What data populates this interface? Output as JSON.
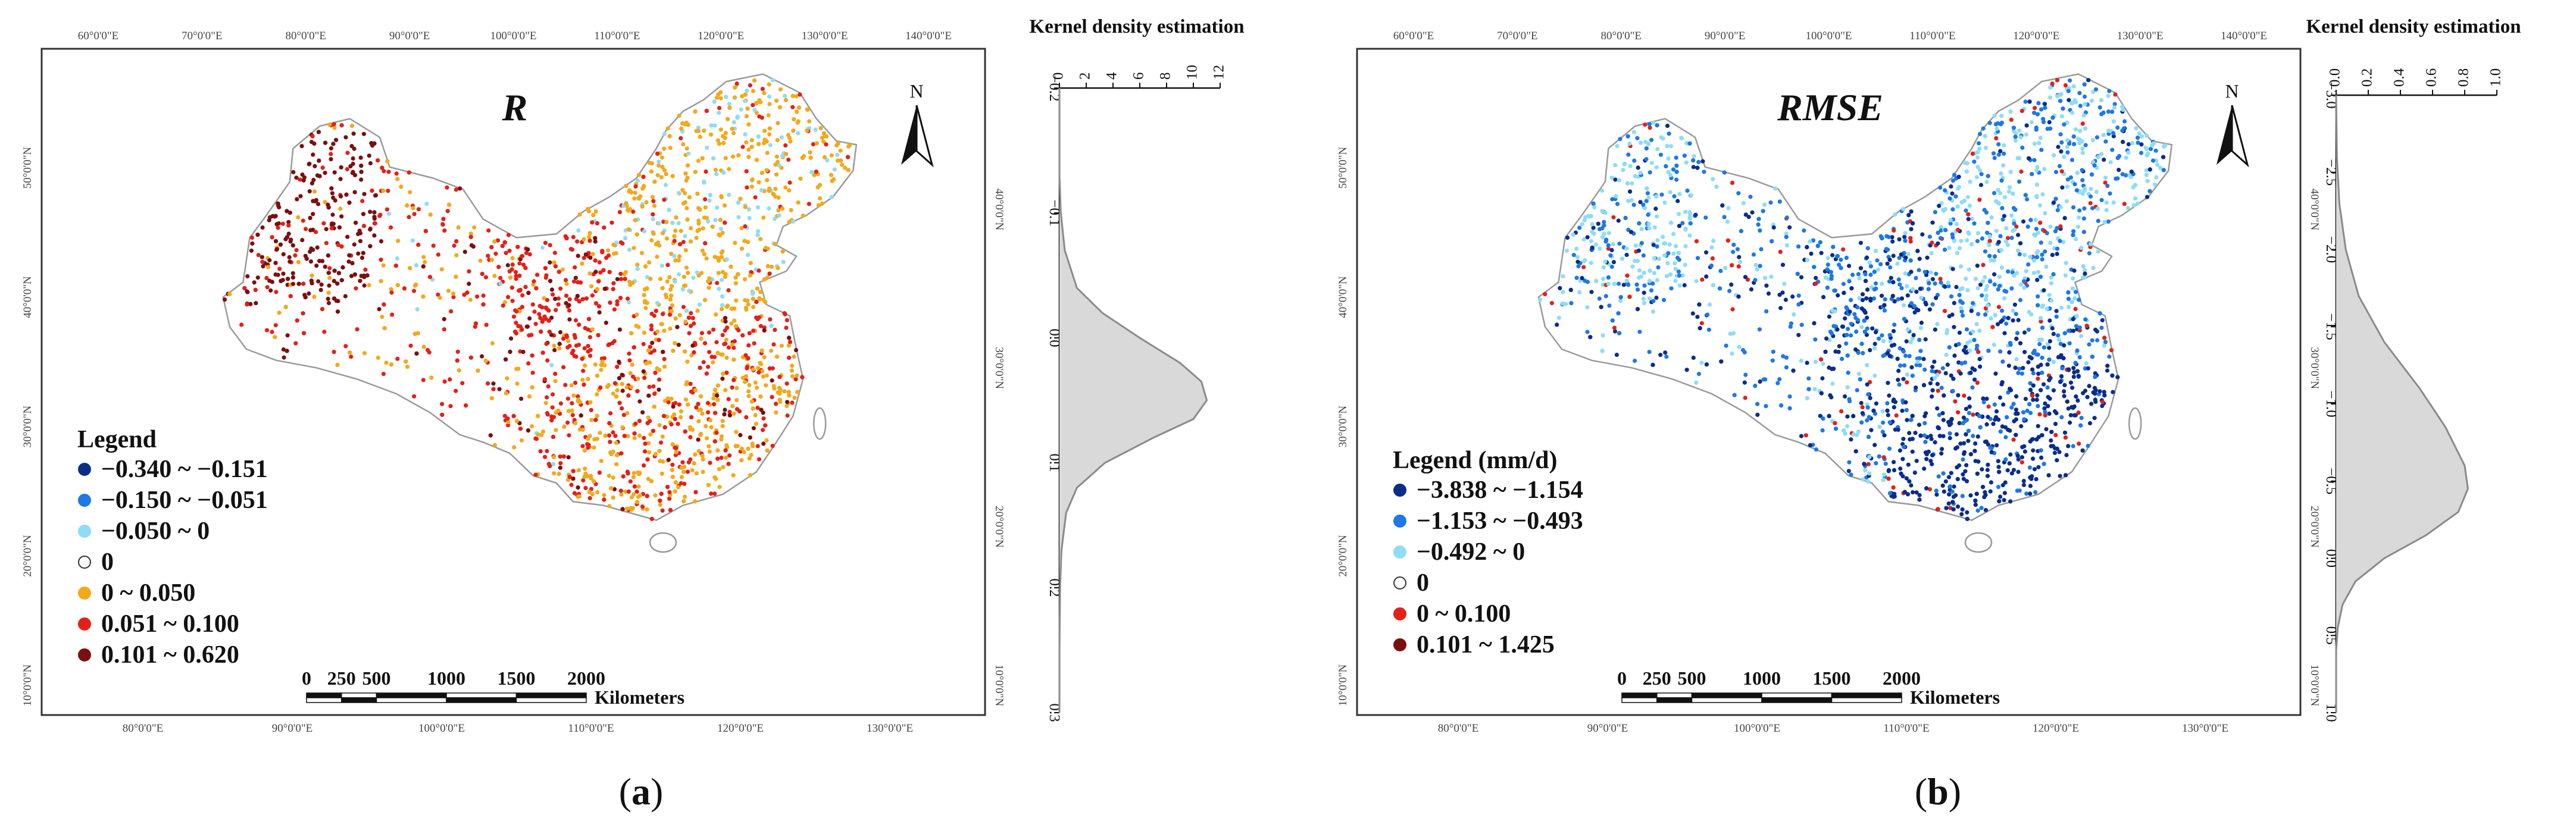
{
  "panels": [
    {
      "id": "a",
      "map_title": "R",
      "caption_letter": "a",
      "legend_title": "Legend",
      "legend_items": [
        {
          "label": "−0.340 ~ −0.151",
          "color": "#0b2d8a",
          "hollow": false
        },
        {
          "label": "−0.150 ~ −0.051",
          "color": "#1e78e6",
          "hollow": false
        },
        {
          "label": "−0.050 ~ 0",
          "color": "#8fdcf5",
          "hollow": false
        },
        {
          "label": "0",
          "color": "#ffffff",
          "hollow": true
        },
        {
          "label": "0 ~ 0.050",
          "color": "#f2a91c",
          "hollow": false
        },
        {
          "label": "0.051 ~ 0.100",
          "color": "#e32119",
          "hollow": false
        },
        {
          "label": "0.101 ~ 0.620",
          "color": "#7a1010",
          "hollow": false
        }
      ],
      "scale_bar": {
        "ticks": [
          "0",
          "250",
          "500",
          "1000",
          "1500",
          "2000"
        ],
        "unit": "Kilometers"
      },
      "top_lon_labels": [
        "60°0'0\"E",
        "70°0'0\"E",
        "80°0'0\"E",
        "90°0'0\"E",
        "100°0'0\"E",
        "110°0'0\"E",
        "120°0'0\"E",
        "130°0'0\"E",
        "140°0'0\"E"
      ],
      "bottom_lon_labels": [
        "80°0'0\"E",
        "90°0'0\"E",
        "100°0'0\"E",
        "110°0'0\"E",
        "120°0'0\"E",
        "130°0'0\"E"
      ],
      "left_lat_labels": [
        "50°0'0\"N",
        "40°0'0\"N",
        "30°0'0\"N",
        "20°0'0\"N",
        "10°0'0\"N"
      ],
      "right_lat_labels": [
        "40°0'0\"N",
        "30°0'0\"N",
        "20°0'0\"N",
        "10°0'0\"N"
      ],
      "kde": {
        "title": "Kernel density estimation",
        "density_ticks": [
          "0",
          "2",
          "4",
          "6",
          "8",
          "10",
          "12"
        ],
        "density_range": [
          0,
          12
        ],
        "value_ticks": [
          "−0.2",
          "−0.1",
          "0.0",
          "0.1",
          "0.2",
          "0.3"
        ],
        "value_range": [
          -0.2,
          0.3
        ],
        "curve": [
          [
            -0.2,
            0
          ],
          [
            -0.13,
            0
          ],
          [
            -0.1,
            0.1
          ],
          [
            -0.07,
            0.4
          ],
          [
            -0.04,
            1.3
          ],
          [
            -0.02,
            3.2
          ],
          [
            0.0,
            6.0
          ],
          [
            0.02,
            9.0
          ],
          [
            0.035,
            10.6
          ],
          [
            0.05,
            11.0
          ],
          [
            0.065,
            10.0
          ],
          [
            0.08,
            7.0
          ],
          [
            0.1,
            3.4
          ],
          [
            0.12,
            1.3
          ],
          [
            0.14,
            0.5
          ],
          [
            0.17,
            0.15
          ],
          [
            0.2,
            0.05
          ],
          [
            0.25,
            0
          ],
          [
            0.3,
            0
          ]
        ]
      }
    },
    {
      "id": "b",
      "map_title": "RMSE",
      "caption_letter": "b",
      "legend_title": "Legend (mm/d)",
      "legend_items": [
        {
          "label": "−3.838 ~ −1.154",
          "color": "#0b2d8a",
          "hollow": false
        },
        {
          "label": "−1.153 ~ −0.493",
          "color": "#1e78e6",
          "hollow": false
        },
        {
          "label": "−0.492 ~ 0",
          "color": "#8fdcf5",
          "hollow": false
        },
        {
          "label": "0",
          "color": "#ffffff",
          "hollow": true
        },
        {
          "label": "0 ~ 0.100",
          "color": "#e32119",
          "hollow": false
        },
        {
          "label": "0.101 ~ 1.425",
          "color": "#7a1010",
          "hollow": false
        }
      ],
      "scale_bar": {
        "ticks": [
          "0",
          "250",
          "500",
          "1000",
          "1500",
          "2000"
        ],
        "unit": "Kilometers"
      },
      "top_lon_labels": [
        "60°0'0\"E",
        "70°0'0\"E",
        "80°0'0\"E",
        "90°0'0\"E",
        "100°0'0\"E",
        "110°0'0\"E",
        "120°0'0\"E",
        "130°0'0\"E",
        "140°0'0\"E"
      ],
      "bottom_lon_labels": [
        "80°0'0\"E",
        "90°0'0\"E",
        "100°0'0\"E",
        "110°0'0\"E",
        "120°0'0\"E",
        "130°0'0\"E"
      ],
      "left_lat_labels": [
        "50°0'0\"N",
        "40°0'0\"N",
        "30°0'0\"N",
        "20°0'0\"N",
        "10°0'0\"N"
      ],
      "right_lat_labels": [
        "40°0'0\"N",
        "30°0'0\"N",
        "20°0'0\"N",
        "10°0'0\"N"
      ],
      "kde": {
        "title": "Kernel density estimation",
        "density_ticks": [
          "0.0",
          "0.2",
          "0.4",
          "0.6",
          "0.8",
          "1.0"
        ],
        "density_range": [
          0,
          1.0
        ],
        "value_ticks": [
          "−3.0",
          "−2.5",
          "−2.0",
          "−1.5",
          "−1.0",
          "−0.5",
          "0.0",
          "0.5",
          "1.0"
        ],
        "value_range": [
          -3.0,
          1.0
        ],
        "curve": [
          [
            -3.0,
            0
          ],
          [
            -2.6,
            0.005
          ],
          [
            -2.3,
            0.02
          ],
          [
            -2.0,
            0.06
          ],
          [
            -1.7,
            0.14
          ],
          [
            -1.4,
            0.3
          ],
          [
            -1.1,
            0.52
          ],
          [
            -0.85,
            0.68
          ],
          [
            -0.6,
            0.8
          ],
          [
            -0.45,
            0.82
          ],
          [
            -0.3,
            0.76
          ],
          [
            -0.15,
            0.56
          ],
          [
            0.0,
            0.3
          ],
          [
            0.15,
            0.12
          ],
          [
            0.3,
            0.04
          ],
          [
            0.45,
            0.01
          ],
          [
            0.6,
            0
          ],
          [
            1.0,
            0
          ]
        ]
      }
    }
  ]
}
